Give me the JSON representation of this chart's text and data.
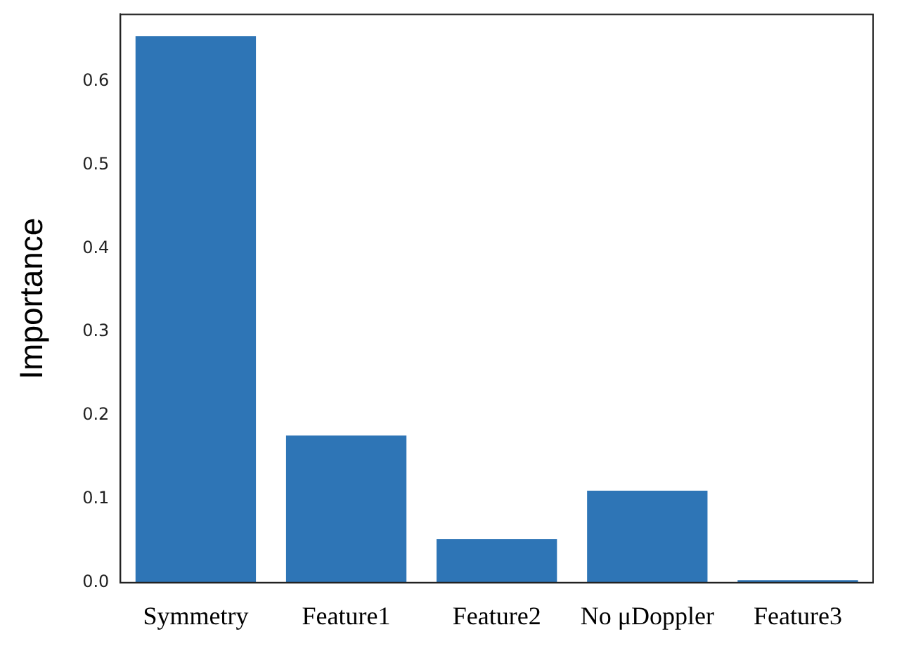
{
  "chart_data": {
    "type": "bar",
    "ylabel": "Importance",
    "categories": [
      "Symmetry",
      "Feature1",
      "Feature2",
      "No μDoppler",
      "Feature3"
    ],
    "values": [
      0.654,
      0.176,
      0.052,
      0.11,
      0.003
    ],
    "color": "#2e75b6",
    "ylim": [
      0,
      0.68
    ],
    "yticks": [
      {
        "value": 0,
        "label": "0.0"
      },
      0.1,
      0.2,
      0.3,
      0.4,
      0.5,
      0.6
    ],
    "grid": false,
    "legend": false
  }
}
